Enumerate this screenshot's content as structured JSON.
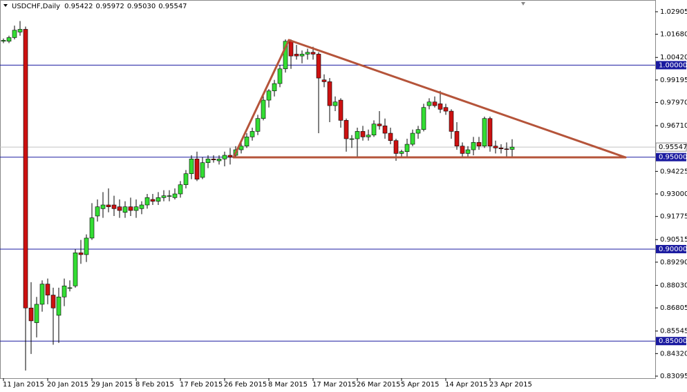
{
  "chart_data": {
    "type": "candlestick",
    "title": "USDCHF,Daily",
    "header_values": [
      "0.95422",
      "0.95972",
      "0.95030",
      "0.95547"
    ],
    "categories": [
      "11 Jan 2015",
      null,
      null,
      null,
      null,
      null,
      null,
      null,
      "20 Jan 2015",
      null,
      null,
      null,
      null,
      null,
      null,
      null,
      "29 Jan 2015",
      null,
      null,
      null,
      null,
      null,
      null,
      null,
      "8 Feb 2015",
      null,
      null,
      null,
      null,
      null,
      null,
      null,
      "17 Feb 2015",
      null,
      null,
      null,
      null,
      null,
      null,
      null,
      "26 Feb 2015",
      null,
      null,
      null,
      null,
      null,
      null,
      null,
      "8 Mar 2015",
      null,
      null,
      null,
      null,
      null,
      null,
      null,
      "17 Mar 2015",
      null,
      null,
      null,
      null,
      null,
      null,
      null,
      "26 Mar 2015",
      null,
      null,
      null,
      null,
      null,
      null,
      null,
      "5 Apr 2015",
      null,
      null,
      null,
      null,
      null,
      null,
      null,
      "14 Apr 2015",
      null,
      null,
      null,
      null,
      null,
      null,
      null,
      "23 Apr 2015",
      null,
      null,
      null,
      null
    ],
    "open": [
      1.013,
      1.013,
      1.015,
      1.018,
      1.0195,
      0.868,
      0.86,
      0.87,
      0.881,
      0.875,
      0.864,
      0.874,
      0.879,
      0.88,
      0.898,
      0.897,
      0.906,
      0.918,
      0.922,
      0.924,
      0.924,
      0.923,
      0.92,
      0.923,
      0.921,
      0.922,
      0.924,
      0.927,
      0.926,
      0.928,
      0.929,
      0.928,
      0.93,
      0.935,
      0.941,
      0.949,
      0.939,
      0.947,
      0.949,
      0.948,
      0.949,
      0.951,
      0.951,
      0.954,
      0.956,
      0.961,
      0.964,
      0.971,
      0.981,
      0.986,
      0.99,
      0.998,
      1.013,
      1.006,
      1.005,
      1.006,
      1.007,
      1.006,
      0.992,
      0.991,
      0.978,
      0.981,
      0.97,
      0.96,
      0.96,
      0.964,
      0.961,
      0.962,
      0.968,
      0.967,
      0.963,
      0.959,
      0.952,
      0.953,
      0.957,
      0.963,
      0.965,
      0.978,
      0.98,
      0.979,
      0.977,
      0.975,
      0.964,
      0.956,
      0.952,
      0.954,
      0.958,
      0.956,
      0.971,
      0.956,
      0.955,
      0.9545,
      0.95422
    ],
    "high": [
      1.0145,
      1.016,
      1.0215,
      1.024,
      1.021,
      0.882,
      0.874,
      0.883,
      0.884,
      0.879,
      0.879,
      0.884,
      0.883,
      0.9,
      0.905,
      0.908,
      0.925,
      0.927,
      0.931,
      0.933,
      0.929,
      0.927,
      0.926,
      0.928,
      0.927,
      0.926,
      0.93,
      0.93,
      0.931,
      0.932,
      0.932,
      0.933,
      0.937,
      0.943,
      0.951,
      0.953,
      0.95,
      0.951,
      0.951,
      0.951,
      0.953,
      0.955,
      0.956,
      0.959,
      0.963,
      0.966,
      0.973,
      0.985,
      0.987,
      0.992,
      1.0,
      1.014,
      1.014,
      1.011,
      1.008,
      1.009,
      1.01,
      1.007,
      0.995,
      0.993,
      0.983,
      0.982,
      0.971,
      0.962,
      0.966,
      0.967,
      0.965,
      0.97,
      0.975,
      0.971,
      0.966,
      0.96,
      0.954,
      0.96,
      0.965,
      0.967,
      0.979,
      0.982,
      0.983,
      0.986,
      0.979,
      0.976,
      0.969,
      0.958,
      0.956,
      0.961,
      0.961,
      0.972,
      0.972,
      0.959,
      0.957,
      0.958,
      0.95972
    ],
    "low": [
      1.012,
      1.012,
      1.014,
      1.016,
      0.834,
      0.843,
      0.852,
      0.866,
      0.87,
      0.848,
      0.849,
      0.869,
      0.877,
      0.879,
      0.892,
      0.893,
      0.905,
      0.915,
      0.917,
      0.92,
      0.918,
      0.917,
      0.917,
      0.918,
      0.917,
      0.919,
      0.922,
      0.924,
      0.924,
      0.926,
      0.926,
      0.927,
      0.928,
      0.933,
      0.938,
      0.937,
      0.938,
      0.944,
      0.947,
      0.946,
      0.945,
      0.946,
      0.95,
      0.952,
      0.955,
      0.959,
      0.962,
      0.97,
      0.977,
      0.983,
      0.988,
      0.996,
      0.998,
      1.003,
      1.001,
      1.003,
      1.003,
      0.963,
      0.988,
      0.969,
      0.975,
      0.966,
      0.953,
      0.955,
      0.95,
      0.959,
      0.959,
      0.961,
      0.965,
      0.96,
      0.957,
      0.948,
      0.95,
      0.95,
      0.956,
      0.96,
      0.964,
      0.976,
      0.977,
      0.974,
      0.973,
      0.96,
      0.954,
      0.95,
      0.95,
      0.951,
      0.954,
      0.955,
      0.953,
      0.952,
      0.952,
      0.95,
      0.9503
    ],
    "close": [
      1.0135,
      1.015,
      1.019,
      1.0195,
      0.868,
      0.861,
      0.87,
      0.881,
      0.875,
      0.868,
      0.874,
      0.88,
      0.879,
      0.898,
      0.897,
      0.906,
      0.917,
      0.923,
      0.924,
      0.923,
      0.922,
      0.921,
      0.923,
      0.921,
      0.923,
      0.924,
      0.928,
      0.926,
      0.928,
      0.929,
      0.929,
      0.93,
      0.935,
      0.941,
      0.949,
      0.938,
      0.947,
      0.949,
      0.9485,
      0.949,
      0.951,
      0.95,
      0.954,
      0.956,
      0.961,
      0.964,
      0.971,
      0.981,
      0.986,
      0.99,
      0.998,
      1.013,
      1.005,
      1.005,
      1.006,
      1.007,
      1.006,
      0.993,
      0.991,
      0.978,
      0.98,
      0.97,
      0.96,
      0.96,
      0.964,
      0.961,
      0.962,
      0.968,
      0.967,
      0.963,
      0.959,
      0.952,
      0.953,
      0.957,
      0.963,
      0.965,
      0.977,
      0.98,
      0.978,
      0.976,
      0.975,
      0.964,
      0.956,
      0.952,
      0.954,
      0.958,
      0.956,
      0.971,
      0.956,
      0.955,
      0.9545,
      0.9542,
      0.95547
    ],
    "up_color": "#33dd33",
    "down_color": "#cc1111",
    "ylim": [
      0.82982,
      1.03543
    ],
    "yticks": [
      {
        "value": 1.02905,
        "label": "1.02905"
      },
      {
        "value": 1.0168,
        "label": "1.01680"
      },
      {
        "value": 1.0042,
        "label": "1.00420"
      },
      {
        "value": 0.99195,
        "label": "0.99195"
      },
      {
        "value": 0.9797,
        "label": "0.97970"
      },
      {
        "value": 0.9671,
        "label": "0.96710"
      },
      {
        "value": 0.94225,
        "label": "0.94225"
      },
      {
        "value": 0.93,
        "label": "0.93000"
      },
      {
        "value": 0.91775,
        "label": "0.91775"
      },
      {
        "value": 0.90515,
        "label": "0.90515"
      },
      {
        "value": 0.8929,
        "label": "0.89290"
      },
      {
        "value": 0.8803,
        "label": "0.88030"
      },
      {
        "value": 0.86805,
        "label": "0.86805"
      },
      {
        "value": 0.85545,
        "label": "0.85545"
      },
      {
        "value": 0.8432,
        "label": "0.84320"
      },
      {
        "value": 0.83095,
        "label": "0.83095"
      }
    ],
    "levels": [
      {
        "value": 1,
        "label": "1.00000"
      },
      {
        "value": 0.95,
        "label": "0.95000"
      },
      {
        "value": 0.9,
        "label": "0.90000"
      },
      {
        "value": 0.85,
        "label": "0.85000"
      }
    ],
    "level_color": "#1a1aa0",
    "last_price": {
      "value": 0.95547,
      "label": "0.95547"
    }
  }
}
